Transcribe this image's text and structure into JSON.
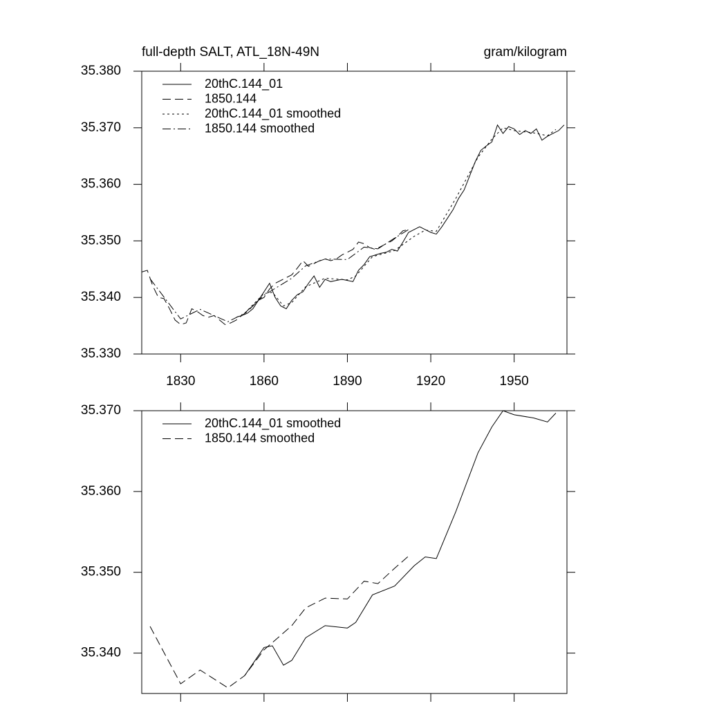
{
  "chart_data": [
    {
      "type": "line",
      "title": "full-depth SALT, ATL_18N-49N",
      "units": "gram/kilogram",
      "xlim": [
        1816,
        1969
      ],
      "xticks": [
        1830,
        1860,
        1890,
        1920,
        1950
      ],
      "show_xtick_labels": true,
      "ylim": [
        35.33,
        35.38
      ],
      "yticks": [
        {
          "value": 35.33,
          "label": "35.330"
        },
        {
          "value": 35.34,
          "label": "35.340"
        },
        {
          "value": 35.35,
          "label": "35.350"
        },
        {
          "value": 35.36,
          "label": "35.360"
        },
        {
          "value": 35.37,
          "label": "35.370"
        },
        {
          "value": 35.38,
          "label": "35.380"
        }
      ],
      "series": [
        {
          "name": "20thC.144_01",
          "color": "#000000",
          "dash": "solid",
          "x": [
            1850,
            1852,
            1854,
            1856,
            1858,
            1860,
            1862,
            1864,
            1866,
            1868,
            1870,
            1872,
            1874,
            1876,
            1878,
            1880,
            1882,
            1884,
            1886,
            1888,
            1890,
            1892,
            1894,
            1896,
            1898,
            1900,
            1902,
            1904,
            1906,
            1908,
            1910,
            1912,
            1914,
            1916,
            1918,
            1920,
            1922,
            1924,
            1926,
            1928,
            1930,
            1932,
            1934,
            1936,
            1938,
            1940,
            1942,
            1944,
            1946,
            1948,
            1950,
            1952,
            1954,
            1956,
            1958,
            1960,
            1962,
            1964,
            1966,
            1968
          ],
          "values": [
            35.3365,
            35.3368,
            35.3372,
            35.338,
            35.3395,
            35.341,
            35.3425,
            35.34,
            35.3385,
            35.338,
            35.3395,
            35.3405,
            35.341,
            35.3425,
            35.3438,
            35.3418,
            35.3432,
            35.3428,
            35.343,
            35.3432,
            35.343,
            35.3428,
            35.3448,
            35.3458,
            35.3472,
            35.3475,
            35.3478,
            35.348,
            35.3485,
            35.3482,
            35.3498,
            35.3515,
            35.352,
            35.3525,
            35.352,
            35.3515,
            35.3512,
            35.3525,
            35.354,
            35.3555,
            35.3575,
            35.359,
            35.3615,
            35.364,
            35.366,
            35.3668,
            35.3675,
            35.3705,
            35.369,
            35.3702,
            35.3698,
            35.3688,
            35.3695,
            35.369,
            35.3698,
            35.3678,
            35.3685,
            35.369,
            35.3695,
            35.3705
          ]
        },
        {
          "name": "1850.144",
          "color": "#000000",
          "dash": "dashed",
          "x": [
            1816,
            1818,
            1820,
            1822,
            1824,
            1826,
            1828,
            1830,
            1832,
            1834,
            1836,
            1838,
            1840,
            1842,
            1844,
            1846,
            1848,
            1850,
            1852,
            1854,
            1856,
            1858,
            1860,
            1862,
            1864,
            1866,
            1868,
            1870,
            1872,
            1874,
            1876,
            1878,
            1880,
            1882,
            1884,
            1886,
            1888,
            1890,
            1892,
            1894,
            1896,
            1898,
            1900,
            1902,
            1904,
            1906,
            1908,
            1910,
            1912
          ],
          "values": [
            35.3445,
            35.3448,
            35.342,
            35.34,
            35.3398,
            35.338,
            35.336,
            35.3352,
            35.3355,
            35.338,
            35.3375,
            35.3368,
            35.3365,
            35.3368,
            35.336,
            35.3352,
            35.3355,
            35.336,
            35.3368,
            35.3375,
            35.3385,
            35.3395,
            35.34,
            35.3415,
            35.3425,
            35.343,
            35.3435,
            35.344,
            35.3452,
            35.3465,
            35.3455,
            35.346,
            35.3465,
            35.3468,
            35.3465,
            35.3468,
            35.3475,
            35.348,
            35.3485,
            35.3498,
            35.3495,
            35.3488,
            35.3485,
            35.349,
            35.3495,
            35.35,
            35.3508,
            35.3518,
            35.352
          ]
        },
        {
          "name": "20thC.144_01 smoothed",
          "color": "#000000",
          "dash": "dotted",
          "x": [
            1853,
            1860,
            1863,
            1867,
            1870,
            1875,
            1882,
            1890,
            1893,
            1899,
            1907,
            1914,
            1918,
            1922,
            1929,
            1937,
            1942,
            1946,
            1950,
            1957,
            1962,
            1965
          ],
          "values": [
            35.3372,
            35.3407,
            35.3409,
            35.3385,
            35.3391,
            35.3419,
            35.3434,
            35.3431,
            35.3438,
            35.3472,
            35.3483,
            35.3508,
            35.3519,
            35.3517,
            35.3575,
            35.3648,
            35.368,
            35.37,
            35.3695,
            35.3691,
            35.3686,
            35.3697
          ]
        },
        {
          "name": "1850.144 smoothed",
          "color": "#000000",
          "dash": "dashdot",
          "x": [
            1819,
            1830,
            1837,
            1847,
            1853,
            1860,
            1870,
            1875,
            1882,
            1890,
            1896,
            1901,
            1907,
            1912
          ],
          "values": [
            35.3433,
            35.3362,
            35.3379,
            35.3357,
            35.3372,
            35.3404,
            35.3434,
            35.3456,
            35.3468,
            35.3467,
            35.3489,
            35.3486,
            35.3505,
            35.352
          ]
        }
      ]
    },
    {
      "type": "line",
      "xlim": [
        1816,
        1969
      ],
      "xticks": [
        1830,
        1860,
        1890,
        1920,
        1950
      ],
      "show_xtick_labels": false,
      "ylim": [
        35.335,
        35.37
      ],
      "yticks": [
        {
          "value": 35.34,
          "label": "35.340"
        },
        {
          "value": 35.35,
          "label": "35.350"
        },
        {
          "value": 35.36,
          "label": "35.360"
        },
        {
          "value": 35.37,
          "label": "35.370"
        }
      ],
      "series": [
        {
          "name": "20thC.144_01 smoothed",
          "color": "#000000",
          "dash": "solid",
          "x": [
            1853,
            1860,
            1863,
            1867,
            1870,
            1875,
            1882,
            1890,
            1893,
            1899,
            1907,
            1914,
            1918,
            1922,
            1929,
            1937,
            1942,
            1946,
            1950,
            1957,
            1962,
            1965
          ],
          "values": [
            35.3372,
            35.3407,
            35.3409,
            35.3385,
            35.3391,
            35.3419,
            35.3434,
            35.3431,
            35.3438,
            35.3472,
            35.3483,
            35.3508,
            35.3519,
            35.3517,
            35.3575,
            35.3648,
            35.368,
            35.37,
            35.3695,
            35.3691,
            35.3686,
            35.3697
          ]
        },
        {
          "name": "1850.144 smoothed",
          "color": "#000000",
          "dash": "dashed",
          "x": [
            1819,
            1830,
            1837,
            1847,
            1853,
            1860,
            1870,
            1875,
            1882,
            1890,
            1896,
            1901,
            1907,
            1912
          ],
          "values": [
            35.3433,
            35.3362,
            35.3379,
            35.3357,
            35.3372,
            35.3404,
            35.3434,
            35.3456,
            35.3468,
            35.3467,
            35.3489,
            35.3486,
            35.3505,
            35.352
          ]
        }
      ]
    }
  ]
}
